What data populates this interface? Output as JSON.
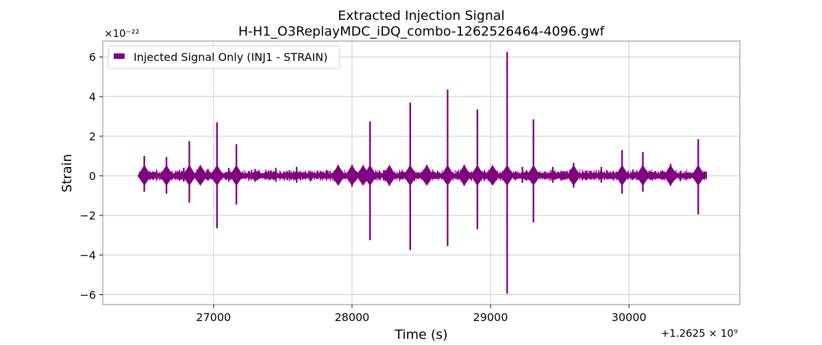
{
  "chart_data": {
    "type": "line",
    "title": "Extracted Injection Signal",
    "subtitle": "H-H1_O3ReplayMDC_iDQ_combo-1262526464-4096.gwf",
    "xlabel": "Time (s)",
    "ylabel": "Strain",
    "x_offset_label": "+1.2625 × 10⁹",
    "y_scale_label": "×10⁻²²",
    "xlim": [
      26200,
      30800
    ],
    "ylim": [
      -6.5,
      6.8
    ],
    "x_ticks": [
      27000,
      28000,
      29000,
      30000
    ],
    "x_tick_labels": [
      "27000",
      "28000",
      "29000",
      "30000"
    ],
    "y_ticks": [
      -6,
      -4,
      -2,
      0,
      2,
      4,
      6
    ],
    "y_tick_labels": [
      "−6",
      "−4",
      "−2",
      "0",
      "2",
      "4",
      "6"
    ],
    "grid": true,
    "legend_position": "top-left",
    "series": [
      {
        "name": "Injected Signal Only (INJ1 - STRAIN)",
        "color": "#800080",
        "x_range": [
          26464,
          30560
        ],
        "baseline_band": [
          -0.3,
          0.35
        ],
        "peaks": [
          {
            "x": 26500,
            "ymax": 1.0,
            "ymin": -0.8
          },
          {
            "x": 26660,
            "ymax": 0.95,
            "ymin": -0.9
          },
          {
            "x": 26785,
            "ymax": 0.4,
            "ymin": -0.3
          },
          {
            "x": 26825,
            "ymax": 1.75,
            "ymin": -1.35
          },
          {
            "x": 26905,
            "ymax": 0.5,
            "ymin": -0.35
          },
          {
            "x": 26960,
            "ymax": 0.35,
            "ymin": -0.25
          },
          {
            "x": 27025,
            "ymax": 2.7,
            "ymin": -2.65
          },
          {
            "x": 27110,
            "ymax": 0.4,
            "ymin": -0.3
          },
          {
            "x": 27165,
            "ymax": 1.6,
            "ymin": -1.45
          },
          {
            "x": 27300,
            "ymax": 0.35,
            "ymin": -0.3
          },
          {
            "x": 27450,
            "ymax": 0.4,
            "ymin": -0.3
          },
          {
            "x": 27600,
            "ymax": 0.45,
            "ymin": -0.35
          },
          {
            "x": 27900,
            "ymax": 0.55,
            "ymin": -0.4
          },
          {
            "x": 28000,
            "ymax": 0.55,
            "ymin": -0.55
          },
          {
            "x": 28080,
            "ymax": 0.5,
            "ymin": -0.4
          },
          {
            "x": 28130,
            "ymax": 2.75,
            "ymin": -3.25
          },
          {
            "x": 28270,
            "ymax": 0.5,
            "ymin": -0.5
          },
          {
            "x": 28420,
            "ymax": 3.7,
            "ymin": -3.75
          },
          {
            "x": 28540,
            "ymax": 0.55,
            "ymin": -0.4
          },
          {
            "x": 28690,
            "ymax": 4.35,
            "ymin": -3.55
          },
          {
            "x": 28810,
            "ymax": 0.55,
            "ymin": -0.5
          },
          {
            "x": 28905,
            "ymax": 3.35,
            "ymin": -2.7
          },
          {
            "x": 29015,
            "ymax": 0.5,
            "ymin": -0.35
          },
          {
            "x": 29120,
            "ymax": 6.25,
            "ymin": -5.95
          },
          {
            "x": 29230,
            "ymax": 0.45,
            "ymin": -0.35
          },
          {
            "x": 29310,
            "ymax": 2.85,
            "ymin": -2.35
          },
          {
            "x": 29450,
            "ymax": 0.45,
            "ymin": -0.35
          },
          {
            "x": 29600,
            "ymax": 0.65,
            "ymin": -0.6
          },
          {
            "x": 29800,
            "ymax": 0.45,
            "ymin": -0.35
          },
          {
            "x": 29950,
            "ymax": 1.3,
            "ymin": -0.9
          },
          {
            "x": 30100,
            "ymax": 1.2,
            "ymin": -0.8
          },
          {
            "x": 30300,
            "ymax": 0.6,
            "ymin": -0.5
          },
          {
            "x": 30500,
            "ymax": 1.85,
            "ymin": -1.95
          }
        ]
      }
    ]
  }
}
